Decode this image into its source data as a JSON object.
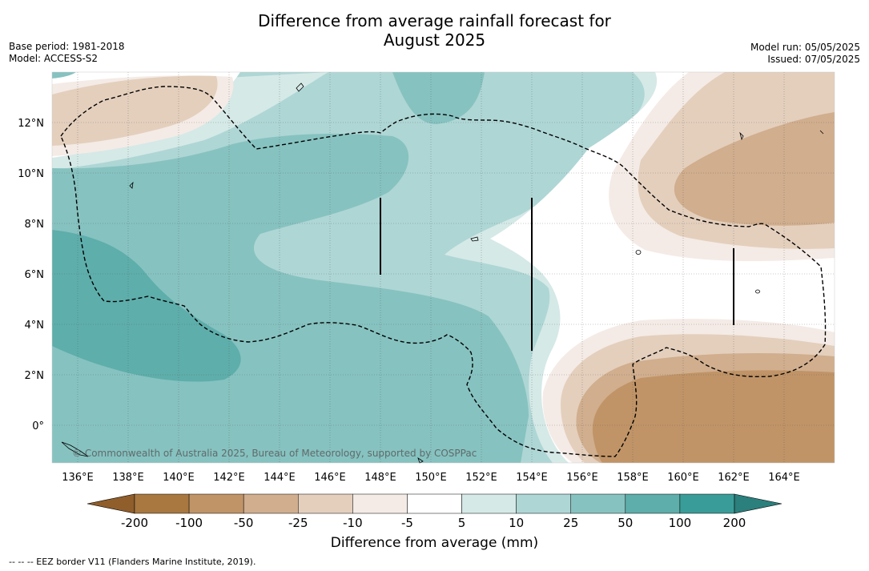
{
  "header": {
    "title_line1": "Difference from average rainfall forecast for",
    "title_line2": "August 2025",
    "base_period": "Base period: 1981-2018",
    "model": "Model: ACCESS-S2",
    "model_run": "Model run: 05/05/2025",
    "issued": "Issued: 07/05/2025"
  },
  "map": {
    "longitude_labels": [
      "136°E",
      "138°E",
      "140°E",
      "142°E",
      "144°E",
      "146°E",
      "148°E",
      "150°E",
      "152°E",
      "154°E",
      "156°E",
      "158°E",
      "160°E",
      "162°E",
      "164°E"
    ],
    "latitude_labels": [
      "12°N",
      "10°N",
      "8°N",
      "6°N",
      "4°N",
      "2°N",
      "0°"
    ],
    "copyright": "© Commonwealth of Australia 2025, Bureau of Meteorology, supported by COSPPac",
    "palette": {
      "p200": "#3a9c98",
      "p100": "#5eaeab",
      "p50": "#86c2c0",
      "p25": "#aed6d5",
      "p10": "#d5e9e7",
      "zero": "#ffffff",
      "n10": "#f4ebe6",
      "n25": "#e4cfbd",
      "n50": "#d0ae8e",
      "n100": "#c09467",
      "n200": "#a87840"
    }
  },
  "colorbar": {
    "tick_labels": [
      "-200",
      "-100",
      "-50",
      "-25",
      "-10",
      "-5",
      "5",
      "10",
      "25",
      "50",
      "100",
      "200"
    ],
    "colors": [
      "#a87840",
      "#c09467",
      "#d0ae8e",
      "#e4cfbd",
      "#f4ebe6",
      "#ffffff",
      "#d5e9e7",
      "#aed6d5",
      "#86c2c0",
      "#5eaeab",
      "#3a9c98"
    ],
    "min_arrow_color": "#8f5e2b",
    "max_arrow_color": "#2b7f7c",
    "title": "Difference from average (mm)"
  },
  "footer": {
    "legend_text": "--  --  -- EEZ border V11 (Flanders Marine Institute, 2019)."
  }
}
